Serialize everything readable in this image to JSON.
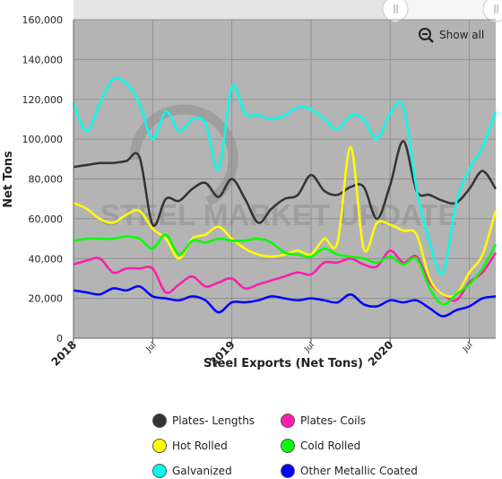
{
  "chart_data": {
    "type": "line",
    "title": "",
    "xlabel": "Steel Exports (Net Tons)",
    "ylabel": "Net Tons",
    "ylim": [
      0,
      160000
    ],
    "ytick_values": [
      0,
      20000,
      40000,
      60000,
      80000,
      100000,
      120000,
      140000,
      160000
    ],
    "ytick_labels": [
      "0",
      "20,000",
      "40,000",
      "60,000",
      "80,000",
      "100,000",
      "120,000",
      "140,000",
      "160,000"
    ],
    "x_range": [
      "2018-01",
      "2020-09"
    ],
    "xtick_labels": [
      {
        "label": "2018",
        "date": "2018-01",
        "major": true
      },
      {
        "label": "Jul",
        "date": "2018-07",
        "major": false
      },
      {
        "label": "2019",
        "date": "2019-01",
        "major": true
      },
      {
        "label": "Jul",
        "date": "2019-07",
        "major": false
      },
      {
        "label": "2020",
        "date": "2020-01",
        "major": true
      },
      {
        "label": "Jul",
        "date": "2020-07",
        "major": false
      }
    ],
    "dates": [
      "2018-01",
      "2018-02",
      "2018-03",
      "2018-04",
      "2018-05",
      "2018-06",
      "2018-07",
      "2018-08",
      "2018-09",
      "2018-10",
      "2018-11",
      "2018-12",
      "2019-01",
      "2019-02",
      "2019-03",
      "2019-04",
      "2019-05",
      "2019-06",
      "2019-07",
      "2019-08",
      "2019-09",
      "2019-10",
      "2019-11",
      "2019-12",
      "2020-01",
      "2020-02",
      "2020-03",
      "2020-04",
      "2020-05",
      "2020-06",
      "2020-07",
      "2020-08",
      "2020-09"
    ],
    "grid": true,
    "legend_position": "bottom",
    "show_all_label": "Show all",
    "watermark": "STEEL MARKET UPDATE",
    "series": [
      {
        "name": "Plates- Lengths",
        "color": "#333333",
        "values": [
          86000,
          87000,
          88000,
          88000,
          89000,
          91000,
          57000,
          70000,
          69000,
          75000,
          78000,
          71000,
          80000,
          70000,
          58000,
          65000,
          70000,
          72000,
          82000,
          74000,
          72000,
          76000,
          76000,
          60000,
          77000,
          99000,
          74000,
          72000,
          69000,
          68000,
          75000,
          84000,
          75000
        ]
      },
      {
        "name": "Plates- Coils",
        "color": "#ff1cae",
        "values": [
          37000,
          39000,
          40000,
          33000,
          35000,
          35000,
          35000,
          23000,
          27000,
          31000,
          26000,
          28000,
          30000,
          25000,
          27000,
          29000,
          31000,
          33000,
          32000,
          38000,
          38000,
          40000,
          37000,
          36000,
          44000,
          38000,
          41000,
          28000,
          22000,
          19000,
          28000,
          33000,
          43000
        ]
      },
      {
        "name": "Hot Rolled",
        "color": "#ffff00",
        "values": [
          68000,
          65000,
          60000,
          58000,
          62000,
          64000,
          55000,
          50000,
          40000,
          50000,
          52000,
          56000,
          50000,
          45000,
          42000,
          41000,
          42000,
          44000,
          42000,
          50000,
          48000,
          96000,
          45000,
          58000,
          57000,
          54000,
          52000,
          30000,
          22000,
          22000,
          33000,
          42000,
          64000
        ]
      },
      {
        "name": "Cold Rolled",
        "color": "#00ff00",
        "values": [
          49000,
          50000,
          50000,
          50000,
          51000,
          50000,
          45000,
          52000,
          42000,
          49000,
          48000,
          50000,
          49000,
          49000,
          50000,
          48000,
          43000,
          42000,
          41000,
          45000,
          42000,
          41000,
          40000,
          38000,
          41000,
          37000,
          40000,
          25000,
          17000,
          22000,
          27000,
          35000,
          47000
        ]
      },
      {
        "name": "Galvanized",
        "color": "#00ffee",
        "values": [
          118000,
          104000,
          118000,
          130000,
          128000,
          118000,
          100000,
          114000,
          104000,
          110000,
          108000,
          85000,
          126000,
          113000,
          112000,
          110000,
          112000,
          116000,
          115000,
          110000,
          105000,
          112000,
          110000,
          100000,
          113000,
          116000,
          75000,
          48000,
          33000,
          68000,
          85000,
          96000,
          114000
        ]
      },
      {
        "name": "Other Metallic Coated",
        "color": "#0000ff",
        "values": [
          24000,
          23000,
          22000,
          25000,
          24000,
          26000,
          21000,
          20000,
          19000,
          21000,
          19000,
          13000,
          18000,
          18000,
          19000,
          21000,
          20000,
          19000,
          20000,
          19000,
          18000,
          22000,
          17000,
          16000,
          19000,
          18000,
          19000,
          15000,
          11000,
          14000,
          16000,
          20000,
          21000
        ]
      }
    ]
  }
}
